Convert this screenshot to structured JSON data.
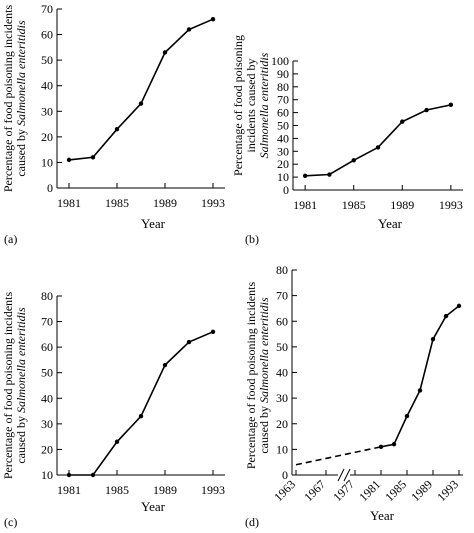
{
  "chart_data": [
    {
      "type": "line",
      "panel_label": "(a)",
      "xlabel": "Year",
      "ylabel_line1": "Percentage of food poisoning incidents",
      "ylabel_line2_prefix": "caused by ",
      "ylabel_line2_italic": "Salmonella enteritidis",
      "xlim": [
        1980,
        1994
      ],
      "ylim": [
        0,
        70
      ],
      "xticks": [
        1981,
        1985,
        1989,
        1993
      ],
      "yticks": [
        0,
        10,
        20,
        30,
        40,
        50,
        60,
        70
      ],
      "grid": false,
      "x": [
        1981,
        1983,
        1985,
        1987,
        1989,
        1991,
        1993
      ],
      "y": [
        11,
        12,
        23,
        33,
        53,
        62,
        66
      ]
    },
    {
      "type": "line",
      "panel_label": "(b)",
      "xlabel": "Year",
      "ylabel_line1": "Percentage of food poisoning",
      "ylabel_line2_prefix": "incidents caused by",
      "ylabel_line3_italic": "Salmonella enteritidis",
      "xlim": [
        1980,
        1994
      ],
      "ylim": [
        0,
        100
      ],
      "xticks": [
        1981,
        1985,
        1989,
        1993
      ],
      "yticks": [
        0,
        10,
        20,
        30,
        40,
        50,
        60,
        70,
        80,
        90,
        100
      ],
      "grid": false,
      "x": [
        1981,
        1983,
        1985,
        1987,
        1989,
        1991,
        1993
      ],
      "y": [
        11,
        12,
        23,
        33,
        53,
        62,
        66
      ]
    },
    {
      "type": "line",
      "panel_label": "(c)",
      "xlabel": "Year",
      "ylabel_line1": "Percentage of food poisoning incidents",
      "ylabel_line2_prefix": "caused by ",
      "ylabel_line2_italic": "Salmonella enteritidis",
      "xlim": [
        1980,
        1994
      ],
      "ylim": [
        10,
        80
      ],
      "xticks": [
        1981,
        1985,
        1989,
        1993
      ],
      "yticks": [
        10,
        20,
        30,
        40,
        50,
        60,
        70,
        80
      ],
      "grid": false,
      "x": [
        1981,
        1983,
        1985,
        1987,
        1989,
        1991,
        1993
      ],
      "y": [
        10,
        10,
        23,
        33,
        53,
        62,
        66
      ]
    },
    {
      "type": "line",
      "panel_label": "(d)",
      "xlabel": "Year",
      "ylabel_line1": "Percentage of food poisoning incidents",
      "ylabel_line2_prefix": "caused by ",
      "ylabel_line2_italic": "Salmonella enteritidis",
      "ylim": [
        0,
        80
      ],
      "xticks": [
        1963,
        1967,
        1977,
        1981,
        1985,
        1989,
        1993
      ],
      "yticks": [
        0,
        10,
        20,
        30,
        40,
        50,
        60,
        70,
        80
      ],
      "axis_break": "//",
      "grid": false,
      "dashed_segment": {
        "x": [
          1963,
          1981
        ],
        "y": [
          4,
          11
        ]
      },
      "x": [
        1981,
        1983,
        1985,
        1987,
        1989,
        1991,
        1993
      ],
      "y": [
        11,
        12,
        23,
        33,
        53,
        62,
        66
      ]
    }
  ]
}
